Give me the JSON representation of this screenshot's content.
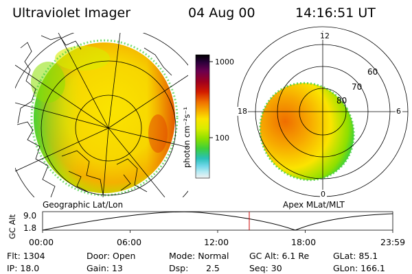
{
  "header": {
    "instrument": "Ultraviolet Imager",
    "date": "04 Aug 00",
    "time": "14:16:51 UT"
  },
  "left_panel": {
    "caption": "Geographic Lat/Lon"
  },
  "colorbar": {
    "unit_label": "photon cm⁻²s⁻¹",
    "tick_1000": "1000",
    "tick_100": "100",
    "colors": [
      "#000000",
      "#2a003a",
      "#6a0050",
      "#a0001e",
      "#d21a00",
      "#ef6d00",
      "#f7a900",
      "#fbe400",
      "#d8ec00",
      "#8de000",
      "#3ed03a",
      "#29c0b8",
      "#6fd7e8",
      "#b6eaf3",
      "#f2f2f2"
    ]
  },
  "right_panel": {
    "caption": "Apex MLat/MLT",
    "mlt_12": "12",
    "mlt_18": "18",
    "mlt_6": "6",
    "mlt_0": "0",
    "lat_60": "60",
    "lat_70": "70",
    "lat_80": "80"
  },
  "gc_alt_plot": {
    "ylabel": "GC Alt",
    "ymax": "9.0",
    "ymin": "1.8",
    "xticks": [
      "00:00",
      "06:00",
      "12:00",
      "18:00",
      "23:59"
    ],
    "marker_time": "14:16:51"
  },
  "info": {
    "flt": "Flt: 1304",
    "ip": "IP: 18.0",
    "door": "Door: Open",
    "gain": "Gain: 13",
    "mode": "Mode: Normal",
    "dsp_label": "Dsp:",
    "dsp_value": "2.5",
    "gc_alt": "GC Alt: 6.1 Re",
    "seq": "Seq: 30",
    "glat": "GLat: 85.1",
    "glon": "GLon: 166.1"
  }
}
